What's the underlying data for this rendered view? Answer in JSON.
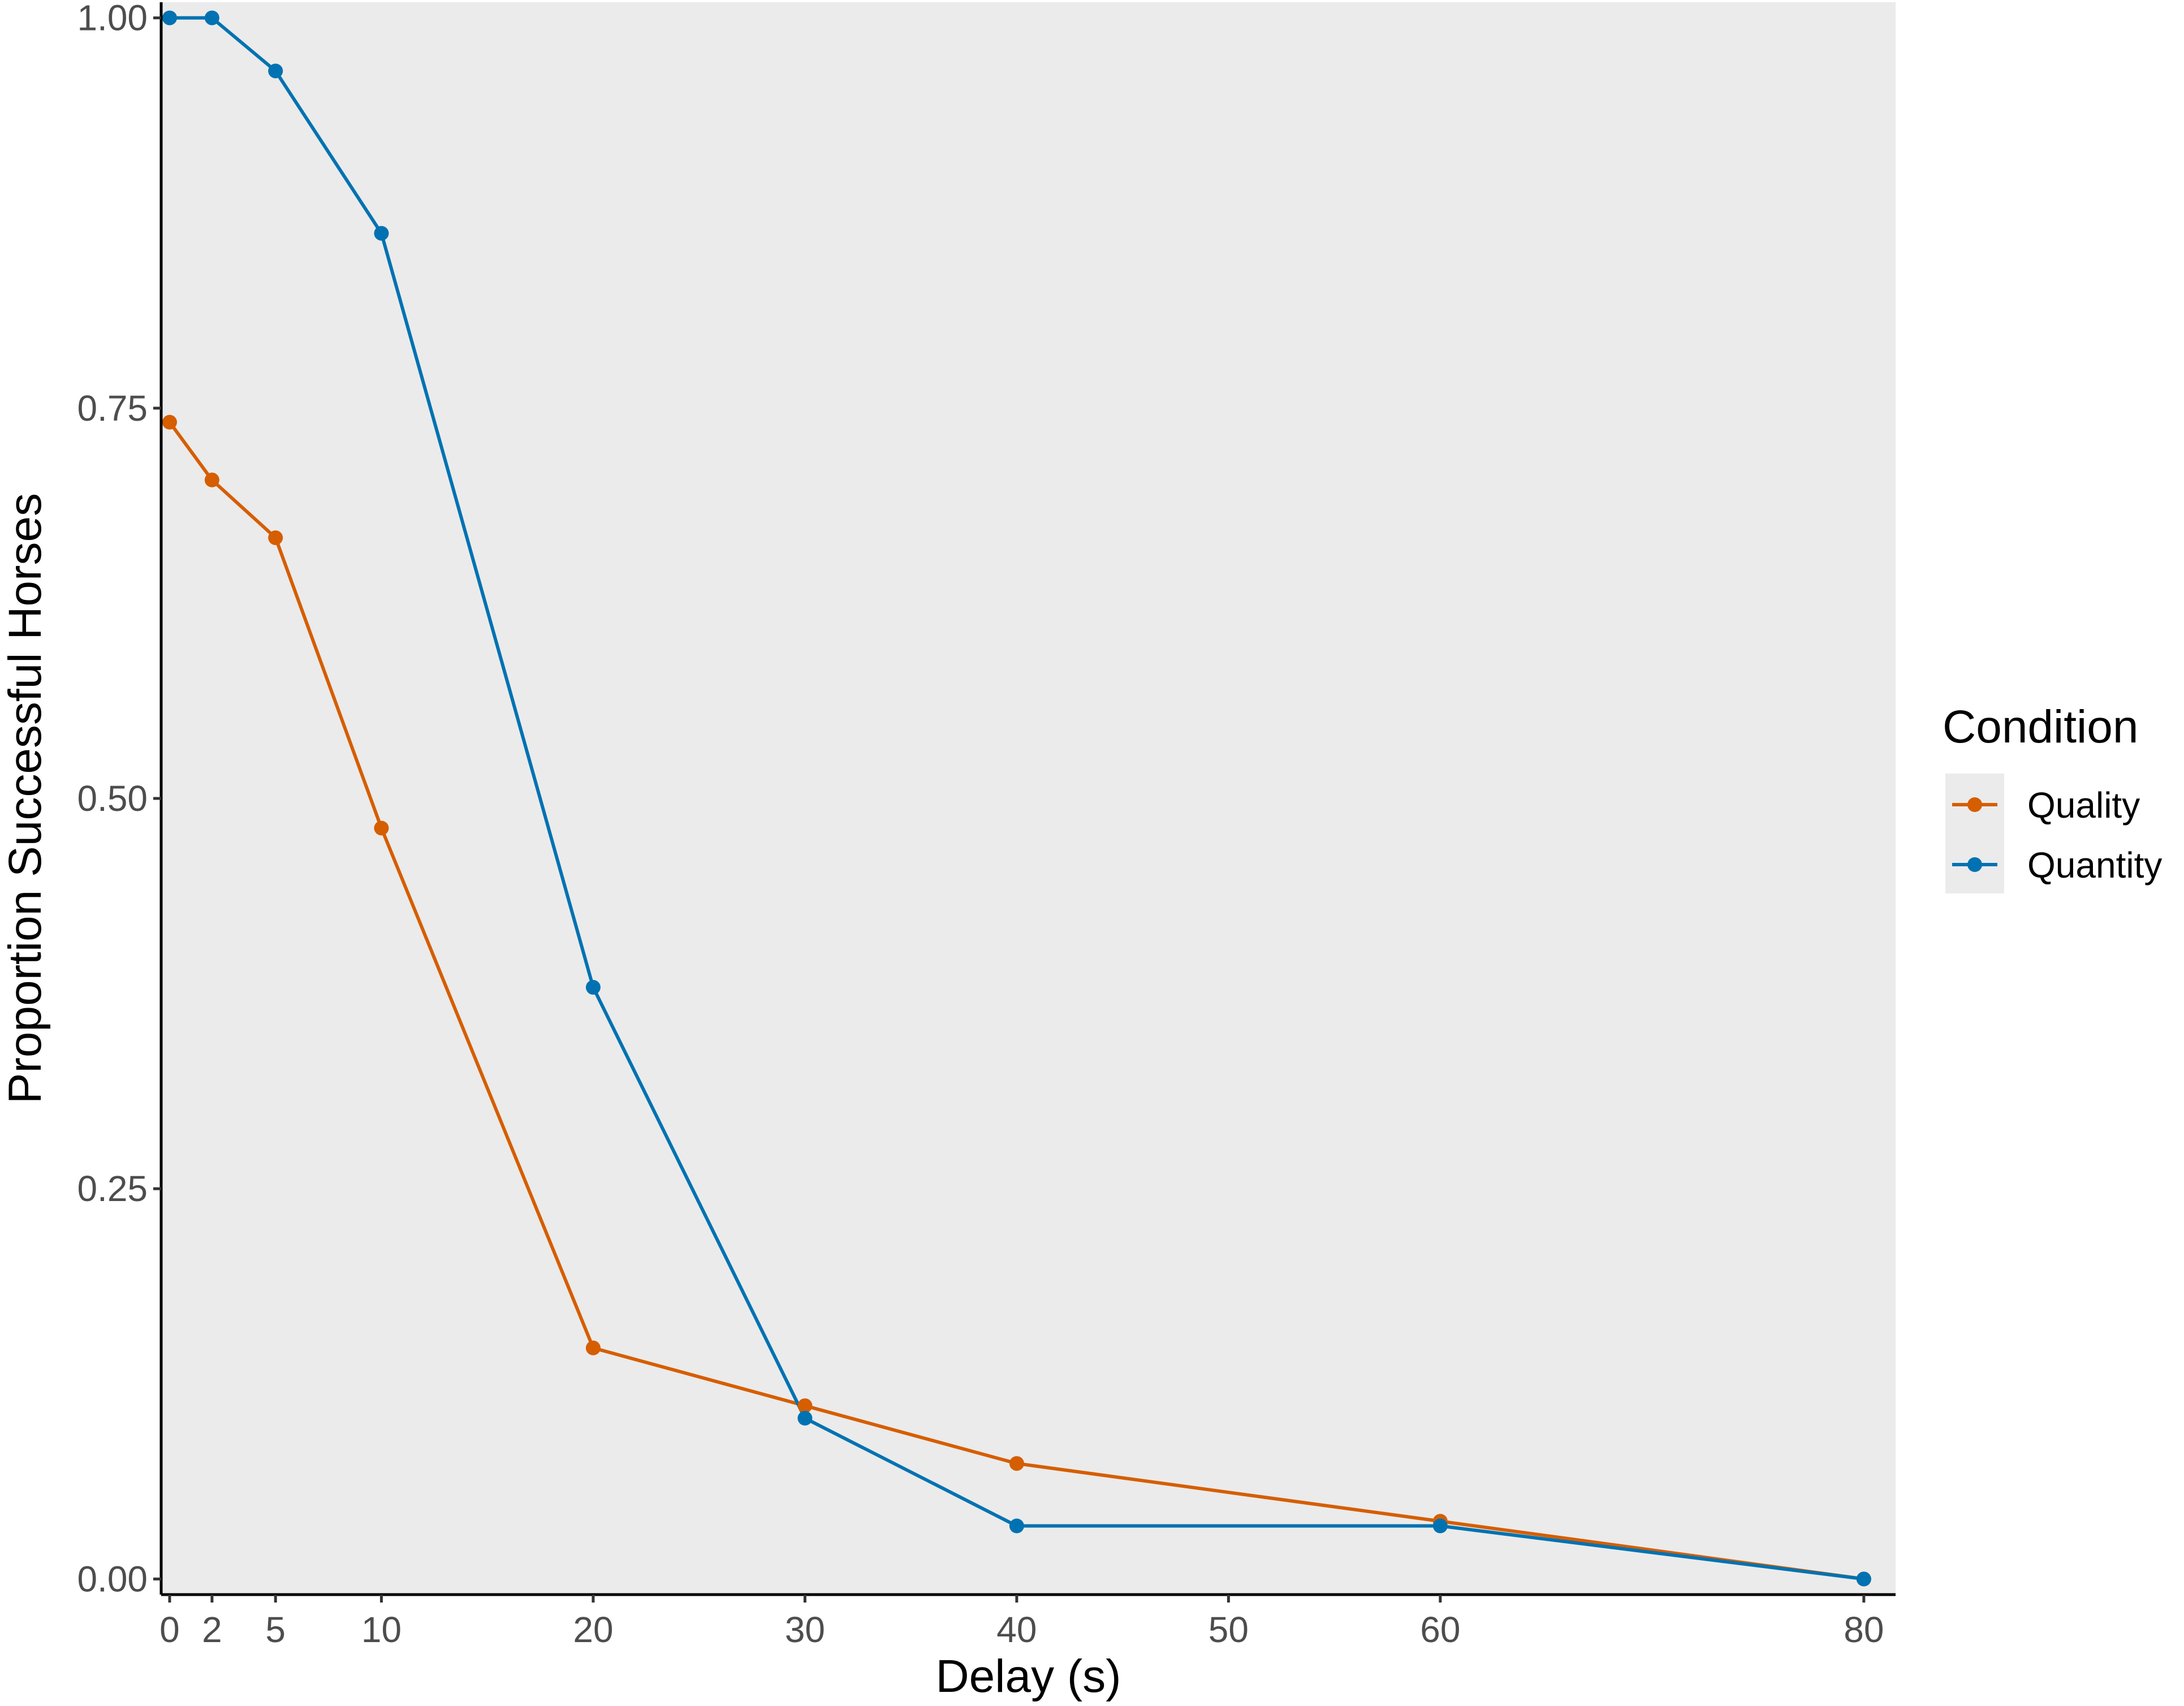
{
  "chart_data": {
    "type": "line",
    "title": "",
    "xlabel": "Delay (s)",
    "ylabel": "Proportion Successful Horses",
    "x": [
      0,
      2,
      5,
      10,
      20,
      30,
      40,
      60,
      80
    ],
    "xticks": [
      0,
      2,
      5,
      10,
      20,
      30,
      40,
      50,
      60,
      80
    ],
    "xtick_labels": [
      "0",
      "2",
      "5",
      "10",
      "20",
      "30",
      "40",
      "50",
      "60",
      "80"
    ],
    "xlim": [
      -0.4,
      81.5
    ],
    "yticks": [
      0,
      0.25,
      0.5,
      0.75,
      1.0
    ],
    "ytick_labels": [
      "0.00",
      "0.25",
      "0.50",
      "0.75",
      "1.00"
    ],
    "ylim": [
      -0.01,
      1.01
    ],
    "grid": false,
    "legend": {
      "title": "Condition",
      "placement": "right"
    },
    "series": [
      {
        "name": "Quality",
        "color": "#d55e00",
        "values": [
          0.741,
          0.704,
          0.667,
          0.481,
          0.148,
          0.111,
          0.074,
          0.037,
          0.0
        ]
      },
      {
        "name": "Quantity",
        "color": "#0072b2",
        "values": [
          1.0,
          1.0,
          0.966,
          0.862,
          0.379,
          0.103,
          0.034,
          0.034,
          0.0
        ]
      }
    ],
    "panel_color": "#ebebeb"
  }
}
